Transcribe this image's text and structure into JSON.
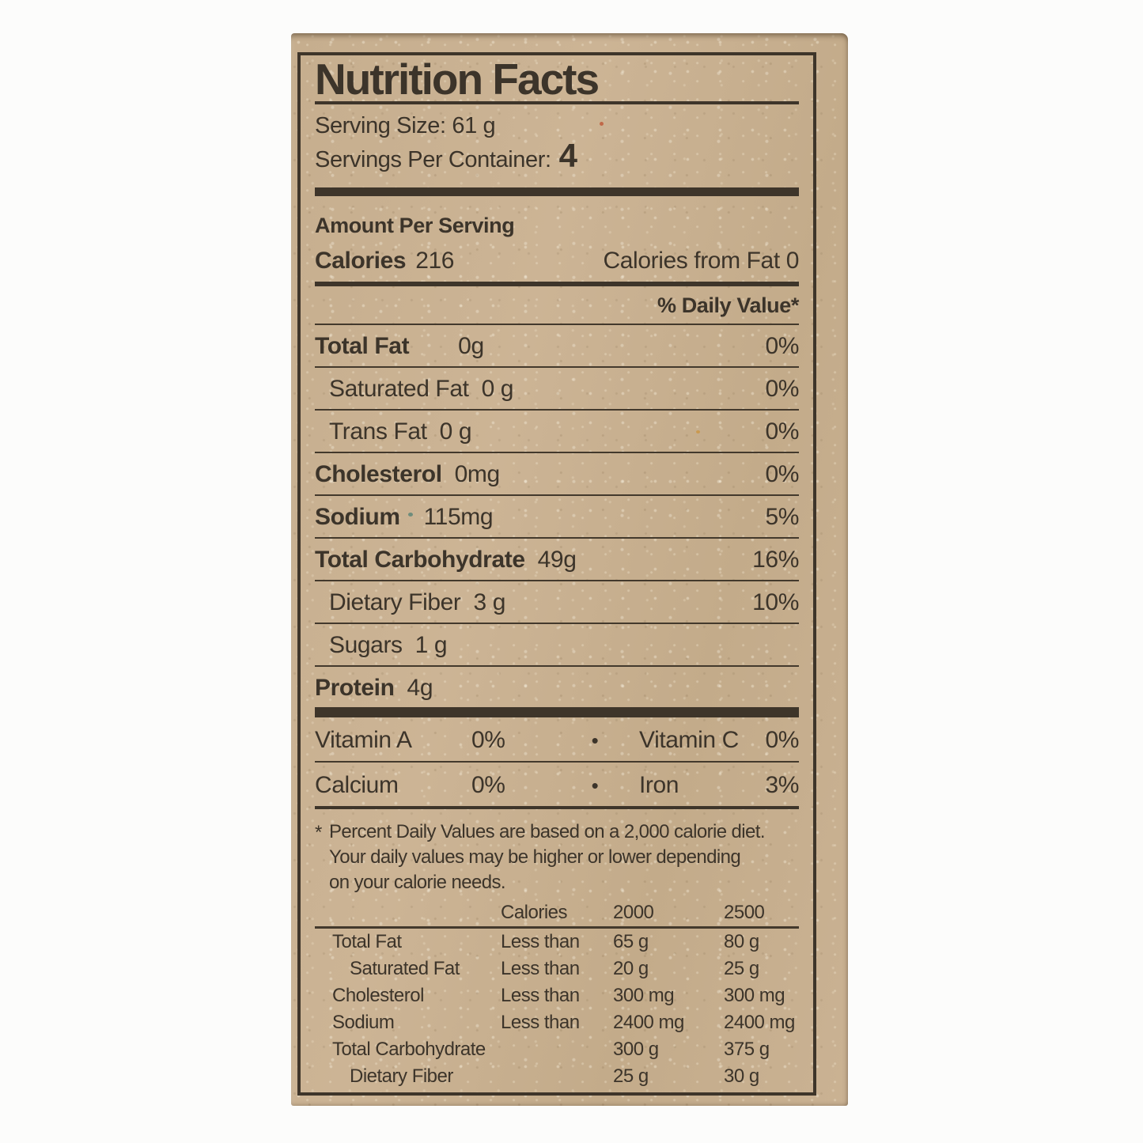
{
  "label": {
    "title": "Nutrition Facts",
    "serving_size_label": "Serving Size:",
    "serving_size_value": "61 g",
    "servings_per_container_label": "Servings Per Container:",
    "servings_per_container_value": "4",
    "amount_per_serving": "Amount Per Serving",
    "calories_label": "Calories",
    "calories_value": "216",
    "calories_from_fat_label": "Calories from Fat",
    "calories_from_fat_value": "0",
    "daily_value_header": "% Daily Value*",
    "nutrients": [
      {
        "name": "Total Fat",
        "amount": "0g",
        "dv": "0%",
        "bold": true,
        "indent": false
      },
      {
        "name": "Saturated Fat",
        "amount": "0 g",
        "dv": "0%",
        "bold": false,
        "indent": true
      },
      {
        "name": "Trans Fat",
        "amount": "0 g",
        "dv": "0%",
        "bold": false,
        "indent": true
      },
      {
        "name": "Cholesterol",
        "amount": "0mg",
        "dv": "0%",
        "bold": true,
        "indent": false
      },
      {
        "name": "Sodium",
        "amount": "115mg",
        "dv": "5%",
        "bold": true,
        "indent": false
      },
      {
        "name": "Total Carbohydrate",
        "amount": "49g",
        "dv": "16%",
        "bold": true,
        "indent": false
      },
      {
        "name": "Dietary Fiber",
        "amount": "3 g",
        "dv": "10%",
        "bold": false,
        "indent": true
      },
      {
        "name": "Sugars",
        "amount": "1 g",
        "dv": "",
        "bold": false,
        "indent": true
      },
      {
        "name": "Protein",
        "amount": "4g",
        "dv": "",
        "bold": true,
        "indent": false
      }
    ],
    "bullet": "•",
    "vitamins": [
      {
        "left_name": "Vitamin A",
        "left_value": "0%",
        "right_name": "Vitamin C",
        "right_value": "0%"
      },
      {
        "left_name": "Calcium",
        "left_value": "0%",
        "right_name": "Iron",
        "right_value": "3%"
      }
    ],
    "footnote_star": "*",
    "footnote_lines": [
      "Percent Daily Values are based on a 2,000 calorie diet.",
      "Your daily  values may be higher or lower depending",
      "on your calorie needs."
    ],
    "footnote_table": {
      "header_calories": "Calories",
      "header_2000": "2000",
      "header_2500": "2500",
      "rows": [
        {
          "name": "Total Fat",
          "qualifier": "Less than",
          "v2000": "65 g",
          "v2500": "80 g",
          "indent": false
        },
        {
          "name": "Saturated Fat",
          "qualifier": "Less than",
          "v2000": "20 g",
          "v2500": "25 g",
          "indent": true
        },
        {
          "name": "Cholesterol",
          "qualifier": "Less than",
          "v2000": "300 mg",
          "v2500": "300 mg",
          "indent": false
        },
        {
          "name": "Sodium",
          "qualifier": "Less than",
          "v2000": "2400 mg",
          "v2500": "2400 mg",
          "indent": false
        },
        {
          "name": "Total Carbohydrate",
          "qualifier": "",
          "v2000": "300 g",
          "v2500": "375 g",
          "indent": false
        },
        {
          "name": "Dietary Fiber",
          "qualifier": "",
          "v2000": "25 g",
          "v2500": "30 g",
          "indent": true
        }
      ]
    },
    "colors": {
      "ink": "#3c342a",
      "cardboard": "#c7af8f",
      "page_bg": "#fcfcfb"
    }
  }
}
